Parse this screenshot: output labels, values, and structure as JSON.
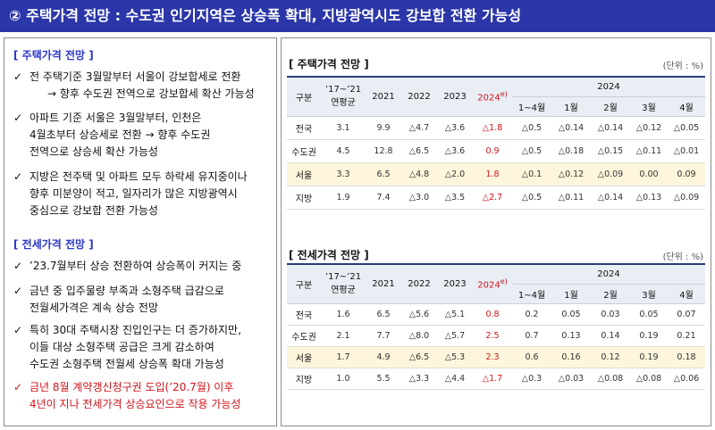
{
  "header": {
    "title": "② 주택가격 전망 : 수도권 인기지역은 상승폭 확대, 지방광역시도 강보합 전환 가능성"
  },
  "left": {
    "sale": {
      "title": "[ 주택가격 전망 ]",
      "bullets": [
        {
          "mark": "✓",
          "lines": [
            "전 주택기준 3월말부터 서울이 강보합세로 전환",
            "→ 향후 수도권 전역으로 강보합세 확산 가능성"
          ]
        },
        {
          "mark": "✓",
          "lines": [
            "아파트 기준 서울은 3월말부터, 인천은",
            "4월초부터 상승세로 전환  → 향후 수도권",
            "전역으로 상승세 확산 가능성"
          ]
        },
        {
          "mark": "✓",
          "lines": [
            "지방은 전주택 및 아파트 모두 하락세 유지중이나",
            "향후 미분양이 적고, 일자리가 많은 지방광역시",
            "중심으로 강보합 전환 가능성"
          ]
        }
      ]
    },
    "rent": {
      "title": "[ 전세가격 전망 ]",
      "bullets": [
        {
          "mark": "✓",
          "lines": [
            "’23.7월부터 상승 전환하여 상승폭이 커지는 중"
          ]
        },
        {
          "mark": "✓",
          "lines": [
            "금년 중 입주물량 부족과 소형주택 급감으로",
            "전월세가격은 계속 상승 전망"
          ]
        },
        {
          "mark": "✓",
          "lines": [
            "특히 30대 주택시장 진입인구는 더 증가하지만,",
            "이들 대상 소형주택 공급은 크게 감소하여",
            "수도권 소형주택 전월세 상승폭 확대 가능성"
          ]
        },
        {
          "mark": "✓",
          "lines": [
            "금년 8월 계약갱신청구권 도입(’20.7월) 이후",
            "4년이 지나 전세가격 상승요인으로 작용 가능성"
          ]
        }
      ]
    }
  },
  "right": {
    "sale_table": {
      "title": "[ 주택가격 전망 ]",
      "unit": "(단위 : %)",
      "headers": {
        "region": "구분",
        "avg": "’17~’21",
        "avg2": "연평균",
        "y2021": "2021",
        "y2022": "2022",
        "y2023": "2023",
        "y2024e": "2024",
        "e_mark": "e)",
        "y2024": "2024",
        "m14": "1~4월",
        "m1": "1월",
        "m2": "2월",
        "m3": "3월",
        "m4": "4월"
      },
      "rows": [
        {
          "region": "전국",
          "cells": [
            "3.1",
            "9.9",
            "△4.7",
            "△3.6",
            "△1.8",
            "△0.5",
            "△0.14",
            "△0.14",
            "△0.12",
            "△0.05"
          ]
        },
        {
          "region": "수도권",
          "cells": [
            "4.5",
            "12.8",
            "△6.5",
            "△3.6",
            "0.9",
            "△0.5",
            "△0.18",
            "△0.15",
            "△0.11",
            "△0.01"
          ]
        },
        {
          "region": "서울",
          "cells": [
            "3.3",
            "6.5",
            "△4.8",
            "△2.0",
            "1.8",
            "△0.1",
            "△0.12",
            "△0.09",
            "0.00",
            "0.09"
          ]
        },
        {
          "region": "지방",
          "cells": [
            "1.9",
            "7.4",
            "△3.0",
            "△3.5",
            "△2.7",
            "△0.5",
            "△0.11",
            "△0.14",
            "△0.13",
            "△0.09"
          ]
        }
      ]
    },
    "rent_table": {
      "title": "[ 전세가격 전망 ]",
      "unit": "(단위 : %)",
      "headers": {
        "region": "구분",
        "avg": "’17~’21",
        "avg2": "연평균",
        "y2021": "2021",
        "y2022": "2022",
        "y2023": "2023",
        "y2024e": "2024",
        "e_mark": "e)",
        "y2024": "2024",
        "m14": "1~4월",
        "m1": "1월",
        "m2": "2월",
        "m3": "3월",
        "m4": "4월"
      },
      "rows": [
        {
          "region": "전국",
          "cells": [
            "1.6",
            "6.5",
            "△5.6",
            "△5.1",
            "0.8",
            "0.2",
            "0.05",
            "0.03",
            "0.05",
            "0.07"
          ]
        },
        {
          "region": "수도권",
          "cells": [
            "2.1",
            "7.7",
            "△8.0",
            "△5.7",
            "2.5",
            "0.7",
            "0.13",
            "0.14",
            "0.19",
            "0.21"
          ]
        },
        {
          "region": "서울",
          "cells": [
            "1.7",
            "4.9",
            "△6.5",
            "△5.3",
            "2.3",
            "0.6",
            "0.16",
            "0.12",
            "0.19",
            "0.18"
          ]
        },
        {
          "region": "지방",
          "cells": [
            "1.0",
            "5.5",
            "△3.3",
            "△4.4",
            "△1.7",
            "△0.3",
            "△0.03",
            "△0.08",
            "△0.08",
            "△0.06"
          ]
        }
      ]
    }
  },
  "colors": {
    "header_bg": "#2b36a8",
    "section_title": "#2b36c8",
    "red_text": "#d0141b",
    "highlight_row": "#fdf6dc",
    "table_head_bg": "#e9eef5"
  }
}
